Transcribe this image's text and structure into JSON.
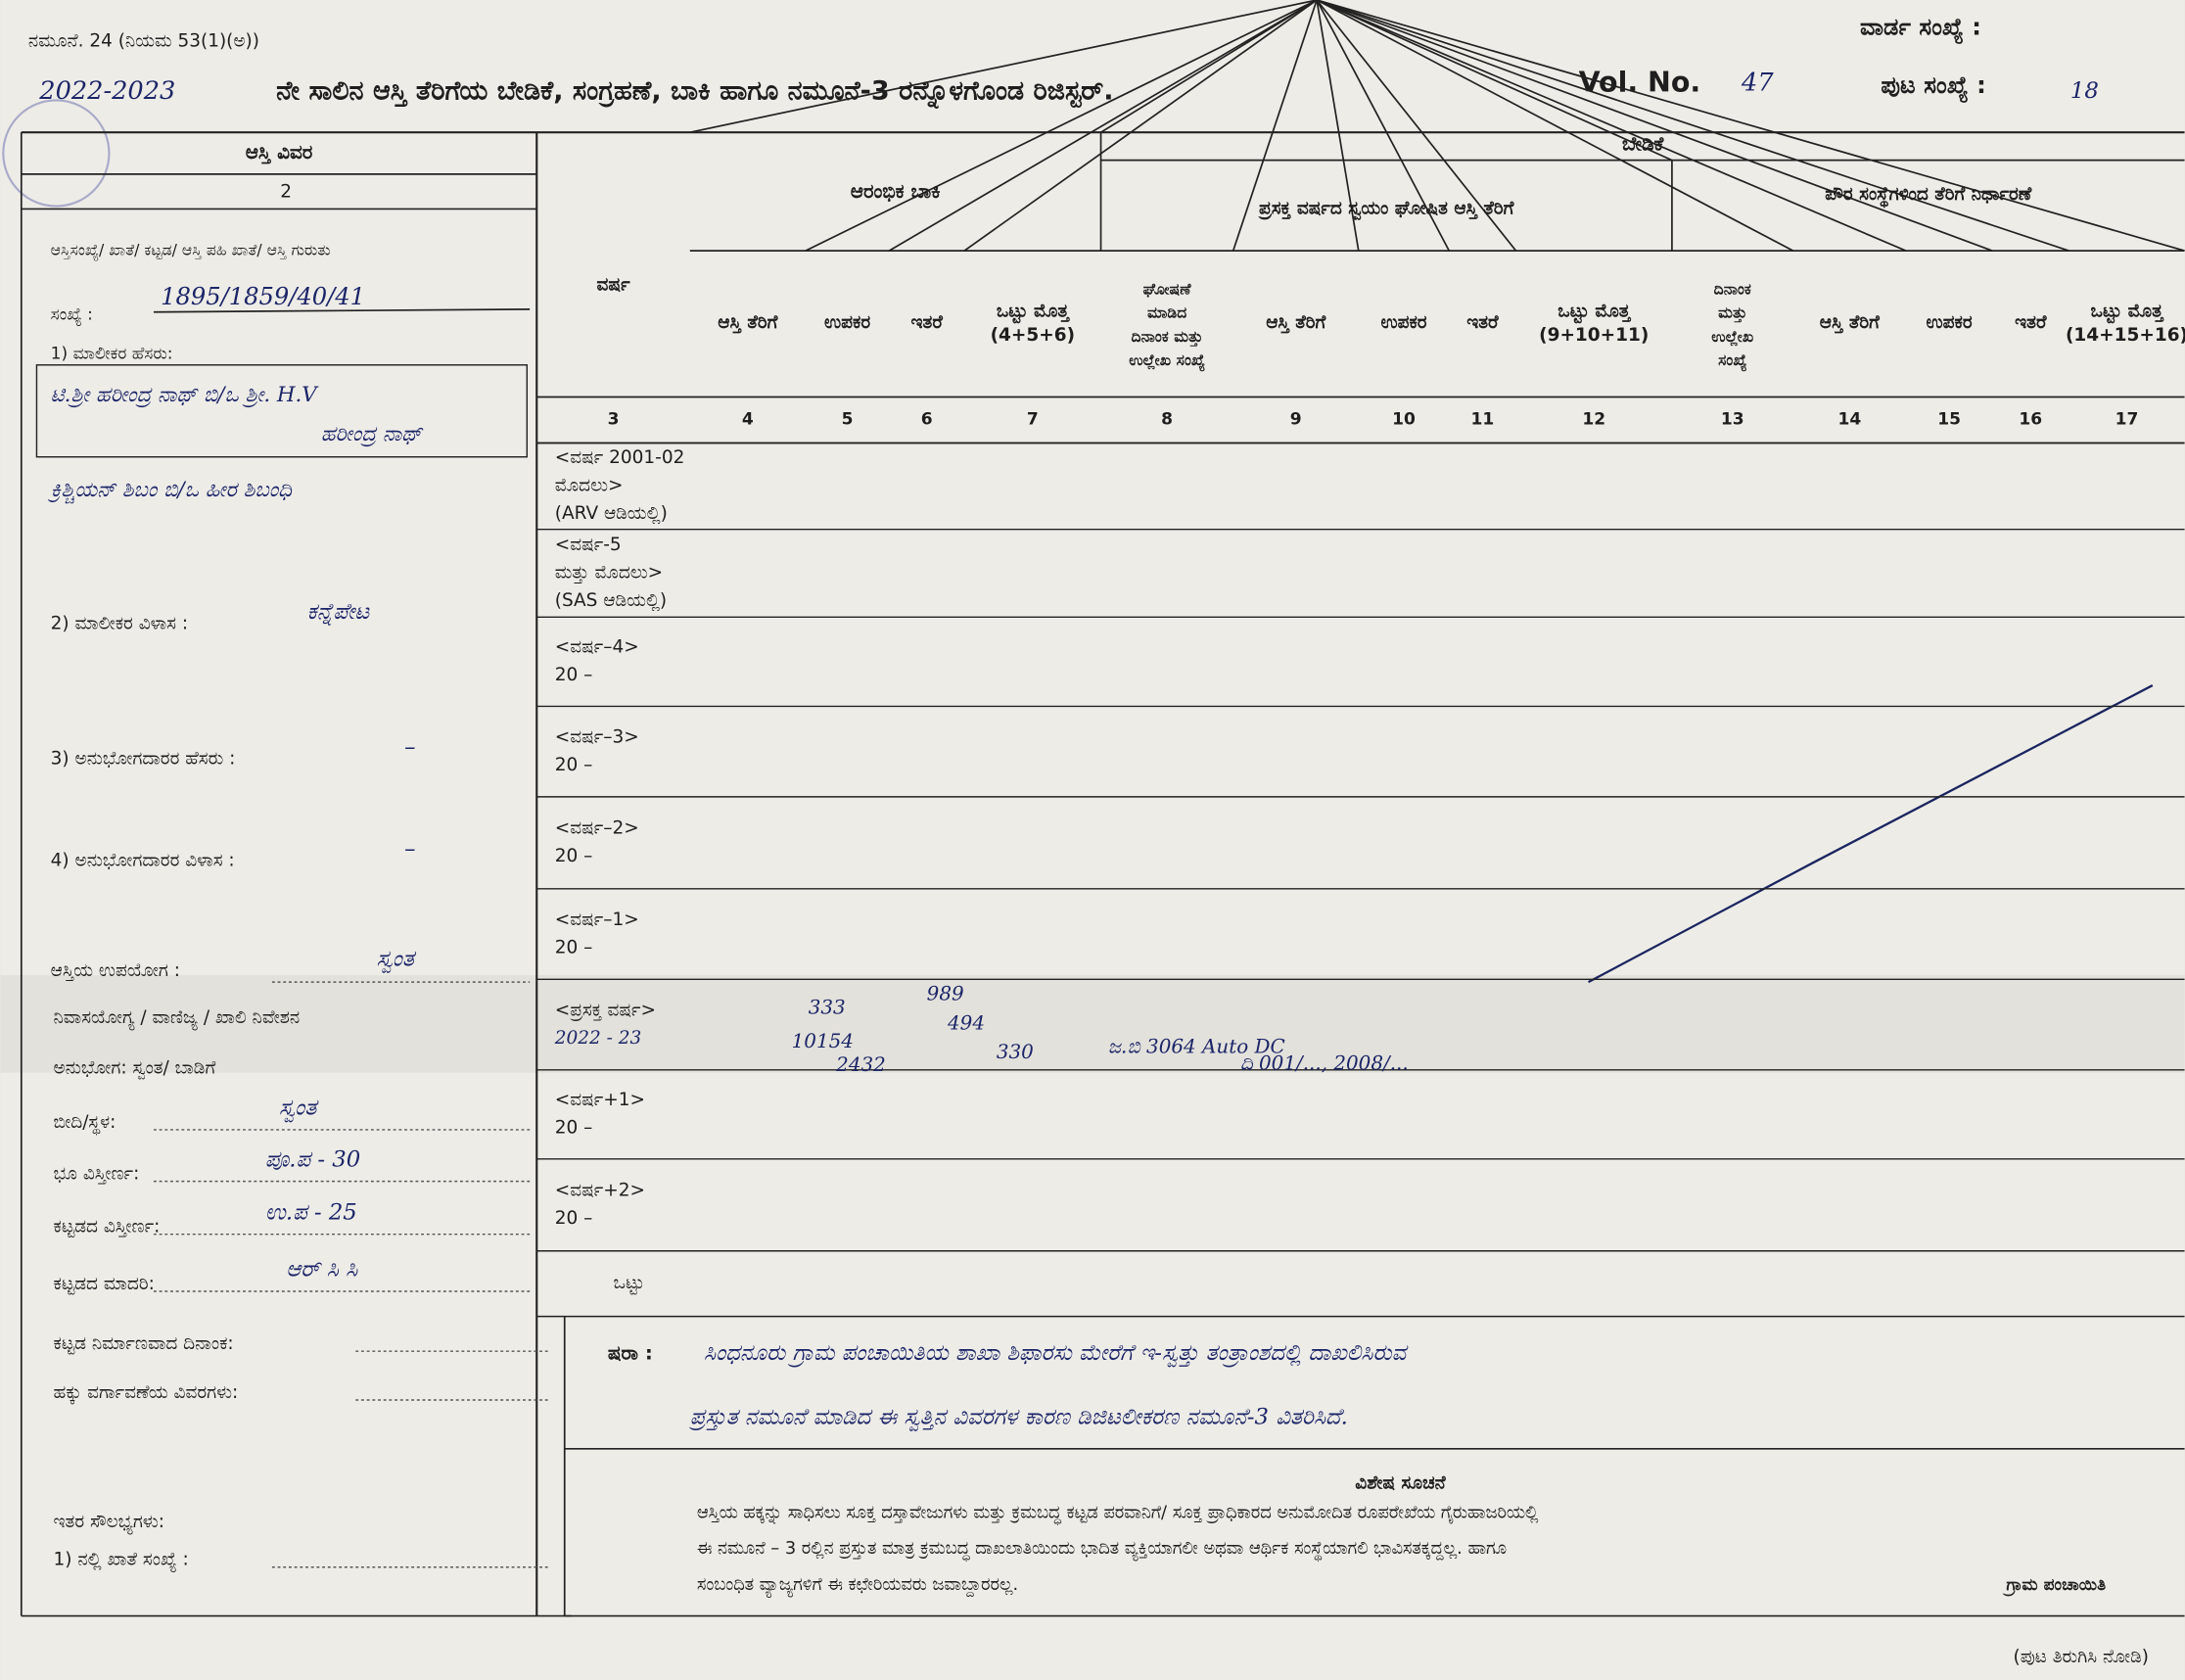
{
  "header": {
    "form_ref": "ನಮೂನೆ. 24 (ನಿಯಮ 53(1)(ಅ))",
    "year": "2022-2023",
    "title": "ನೇ ಸಾಲಿನ ಆಸ್ತಿ ತೆರಿಗೆಯ ಬೇಡಿಕೆ, ಸಂಗ್ರಹಣೆ, ಬಾಕಿ ಹಾಗೂ ನಮೂನೆ-3 ರನ್ನೊಳಗೊಂಡ ರಿಜಿಸ್ಟರ್.",
    "vol_label": "Vol. No.",
    "vol_no": "47",
    "ward_label": "ವಾರ್ಡ ಸಂಖ್ಯೆ :",
    "page_label": "ಪುಟ ಸಂಖ್ಯೆ :",
    "page_no": "18"
  },
  "property": {
    "heading": "ಆಸ್ತಿ ವಿವರ",
    "col_no": "2",
    "id_label": "ಆಸ್ತಿಸಂಖ್ಯೆ/ ಖಾತೆ/ ಕಟ್ಟಡ/ ಆಸ್ತಿ ಪಹಿ ಖಾತೆ/ ಆಸ್ತಿ ಗುರುತು",
    "id_label2": "ಸಂಖ್ಯೆ :",
    "id_value": "1895/1859/40/41",
    "owner_label": "1) ಮಾಲೀಕರ ಹೆಸರು:",
    "owner_value": [
      "ಟಿ.ಶ್ರೀ ಹರೀಂದ್ರ ನಾಥ್  ಬಿ/ಒ  ಶ್ರೀ. H.V",
      "ಹರೀಂದ್ರ ನಾಥ್",
      "ಕ್ರಿಶ್ಚಿಯನ್ ಶಿಬಂ  ಬಿ/ಒ  ಹೀರ ಶಿಬಂಧಿ"
    ],
    "address_label": "2) ಮಾಲೀಕರ ವಿಳಾಸ :",
    "address_value": "ಕನ್ನೆಪೇಟ",
    "occupant_label": "3) ಅನುಭೋಗದಾರರ ಹೆಸರು :",
    "occupant_value": "–",
    "occupant_address_label": "4) ಅನುಭೋಗದಾರರ ವಿಳಾಸ :",
    "occupant_address_value": "–",
    "use_label": "ಆಸ್ತಿಯ ಉಪಯೋಗ :",
    "use_value": "ಸ್ವಂತ",
    "use_options": "ನಿವಾಸಯೋಗ್ಯ / ವಾಣಿಜ್ಯ / ಖಾಲಿ ನಿವೇಶನ",
    "tenure": "ಅನುಭೋಗ: ಸ್ವಂತ/ ಬಾಡಿಗೆ",
    "street_label": "ಬೀದಿ/ಸ್ಥಳ:",
    "street_value": "ಸ್ವಂತ",
    "land_label": "ಭೂ ವಿಸ್ತೀರ್ಣ:",
    "land_value": "ಪೂ.ಪ - 30",
    "building_area_label": "ಕಟ್ಟಡದ ವಿಸ್ತೀರ್ಣ:",
    "building_area_value": "ಉ.ಪ - 25",
    "building_type_label": "ಕಟ್ಟಡದ ಮಾದರಿ:",
    "building_type_value": "ಆರ್ ಸಿ ಸಿ",
    "construction_date_label": "ಕಟ್ಟಡ ನಿರ್ಮಾಣವಾದ ದಿನಾಂಕ:",
    "transfer_label": "ಹಕ್ಕು ವರ್ಗಾವಣೆಯ ವಿವರಗಳು:",
    "facilities_label": "ಇತರ ಸೌಲಭ್ಯಗಳು:",
    "tap_label": "1) ನಲ್ಲಿ ಖಾತೆ ಸಂಖ್ಯೆ :"
  },
  "register": {
    "demand": "ಬೇಡಿಕೆ",
    "opening_balance": "ಆರಂಭಿಕ ಬಾಕಿ",
    "self_declared": "ಪ್ರಸಕ್ತ ವರ್ಷದ ಸ್ವಯಂ ಘೋಷಿತ ಆಸ್ತಿ ತೆರಿಗೆ",
    "municipal": "ಪೌರ ಸಂಸ್ಥೆಗಳಿಂದ ತೆರಿಗೆ ನಿರ್ಧಾರಣೆ",
    "columns": [
      {
        "label": [
          "ವರ್ಷ"
        ],
        "no": 3
      },
      {
        "label": [
          "ಆಸ್ತಿ ತೆರಿಗೆ"
        ],
        "no": 4
      },
      {
        "label": [
          "ಉಪಕರ"
        ],
        "no": 5
      },
      {
        "label": [
          "ಇತರೆ"
        ],
        "no": 6
      },
      {
        "label": [
          "ಒಟ್ಟು ಮೊತ್ತ",
          "(4+5+6)"
        ],
        "no": 7
      },
      {
        "label": [
          "ಘೋಷಣೆ",
          "ಮಾಡಿದ",
          "ದಿನಾಂಕ ಮತ್ತು",
          "ಉಲ್ಲೇಖ ಸಂಖ್ಯೆ"
        ],
        "no": 8
      },
      {
        "label": [
          "ಆಸ್ತಿ ತೆರಿಗೆ"
        ],
        "no": 9
      },
      {
        "label": [
          "ಉಪಕರ"
        ],
        "no": 10
      },
      {
        "label": [
          "ಇತರೆ"
        ],
        "no": 11
      },
      {
        "label": [
          "ಒಟ್ಟು ಮೊತ್ತ",
          "(9+10+11)"
        ],
        "no": 12
      },
      {
        "label": [
          "ದಿನಾಂಕ",
          "ಮತ್ತು",
          "ಉಲ್ಲೇಖ",
          "ಸಂಖ್ಯೆ"
        ],
        "no": 13
      },
      {
        "label": [
          "ಆಸ್ತಿ ತೆರಿಗೆ"
        ],
        "no": 14
      },
      {
        "label": [
          "ಉಪಕರ"
        ],
        "no": 15
      },
      {
        "label": [
          "ಇತರೆ"
        ],
        "no": 16
      },
      {
        "label": [
          "ಒಟ್ಟು ಮೊತ್ತ",
          "(14+15+16)"
        ],
        "no": 17
      }
    ],
    "rows": [
      [
        "<ವರ್ಷ 2001-02",
        "ಮೊದಲು>",
        "(ARV ಆಡಿಯಲ್ಲಿ)"
      ],
      [
        "<ವರ್ಷ-5",
        "ಮತ್ತು ಮೊದಲು>",
        "(SAS ಆಡಿಯಲ್ಲಿ)"
      ],
      [
        "<ವರ್ಷ–4>",
        "20  –"
      ],
      [
        "<ವರ್ಷ–3>",
        "20  –"
      ],
      [
        "<ವರ್ಷ–2>",
        "20  –"
      ],
      [
        "<ವರ್ಷ–1>",
        "20  –"
      ],
      [
        "<ಪ್ರಸಕ್ತ ವರ್ಷ>",
        "2022 - 23"
      ],
      [
        "<ವರ್ಷ+1>",
        "20  –"
      ],
      [
        "<ವರ್ಷ+2>",
        "20  –"
      ],
      [
        "ಒಟ್ಟು"
      ]
    ],
    "current_entries": [
      "333",
      "10154",
      "2432",
      "989",
      "494",
      "330",
      "ಜ.ಬಿ 3064 Auto DC",
      "ದಿ 001/..., 2008/..."
    ]
  },
  "remarks": {
    "label": "ಷರಾ :",
    "lines": [
      "ಸಿಂಧನೂರು ಗ್ರಾಮ ಪಂಚಾಯಿತಿಯ ಶಾಖಾ ಶಿಫಾರಸು ಮೇರೆಗೆ ಇ-ಸ್ವತ್ತು ತಂತ್ರಾಂಶದಲ್ಲಿ ದಾಖಲಿಸಿರುವ",
      "ಪ್ರಸ್ತುತ ನಮೂನೆ ಮಾಡಿದ ಈ ಸ್ವತ್ತಿನ ವಿವರಗಳ ಕಾರಣ ಡಿಜಿಟಲೀಕರಣ ನಮೂನೆ-3 ವಿತರಿಸಿದೆ."
    ]
  },
  "note": {
    "title": "ವಿಶೇಷ ಸೂಚನೆ",
    "lines": [
      "ಆಸ್ತಿಯ ಹಕ್ಕನ್ನು ಸಾಧಿಸಲು ಸೂಕ್ತ ದಸ್ತಾವೇಜುಗಳು ಮತ್ತು ಕ್ರಮಬದ್ಧ ಕಟ್ಟಡ ಪರವಾನಿಗೆ/ ಸೂಕ್ತ ಪ್ರಾಧಿಕಾರದ ಅನುಮೋದಿತ ರೂಪರೇಖೆಯ ಗೈರುಹಾಜರಿಯಲ್ಲಿ",
      "ಈ ನಮೂನೆ – 3 ರಲ್ಲಿನ ಪ್ರಸ್ತುತ ಮಾತ್ರ ಕ್ರಮಬದ್ಧ ದಾಖಲಾತಿಯಿಂದು ಭಾದಿತ ವ್ಯಕ್ತಿಯಾಗಲೀ ಅಥವಾ ಆರ್ಥಿಕ ಸಂಸ್ಥೆಯಾಗಲಿ ಭಾವಿಸತಕ್ಕದ್ದಲ್ಲ. ಹಾಗೂ",
      "ಸಂಬಂಧಿತ ವ್ಯಾಜ್ಯಗಳಿಗೆ ಈ ಕಛೇರಿಯವರು ಜವಾಬ್ದಾರರಲ್ಲ."
    ],
    "stamp": "ಗ್ರಾಮ ಪಂಚಾಯಿತಿ"
  },
  "footer": "(ಪುಟ ತಿರುಗಿಸಿ ನೋಡಿ)"
}
